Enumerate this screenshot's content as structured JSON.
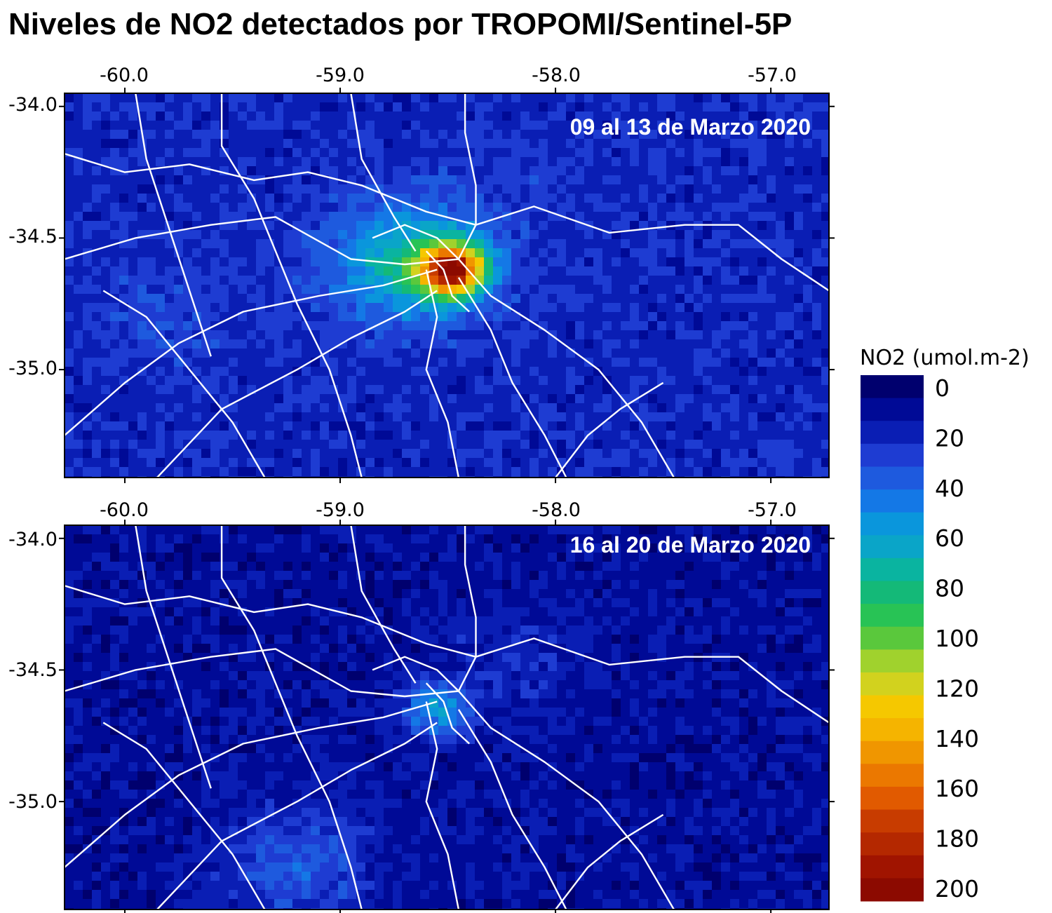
{
  "title": "Niveles de NO2 detectados por TROPOMI/Sentinel-5P",
  "lon_ticks": [
    "-60.0",
    "-59.0",
    "-58.0",
    "-57.0"
  ],
  "lat_ticks": [
    "-34.0",
    "-34.5",
    "-35.0"
  ],
  "lon_range": [
    -60.28,
    -56.73
  ],
  "lat_range": [
    -33.95,
    -35.41
  ],
  "panels": [
    {
      "label": "09 al 13 de Marzo 2020",
      "hotspots": [
        {
          "lon": -58.48,
          "lat": -34.62,
          "no2": 175
        },
        {
          "lon": -58.7,
          "lat": -34.6,
          "no2": 70
        },
        {
          "lon": -59.8,
          "lat": -34.8,
          "no2": 30
        },
        {
          "lon": -58.2,
          "lat": -34.3,
          "no2": 25
        }
      ],
      "background_no2": 20
    },
    {
      "label": "16 al 20 de Marzo 2020",
      "hotspots": [
        {
          "lon": -58.55,
          "lat": -34.65,
          "no2": 55
        },
        {
          "lon": -59.2,
          "lat": -35.25,
          "no2": 35
        },
        {
          "lon": -58.2,
          "lat": -34.45,
          "no2": 20
        }
      ],
      "background_no2": 10
    }
  ],
  "colorbar": {
    "title": "NO2 (umol.m-2)",
    "labels": [
      "0",
      "20",
      "40",
      "60",
      "80",
      "100",
      "120",
      "140",
      "160",
      "180",
      "200"
    ],
    "colors": [
      "#00006e",
      "#000a96",
      "#0a1eb4",
      "#1e3cd2",
      "#1e5ade",
      "#1478e6",
      "#0a96dc",
      "#0aa5c8",
      "#0ab4a0",
      "#14b978",
      "#28c355",
      "#5ac83c",
      "#a0d22d",
      "#d2d21e",
      "#f5c800",
      "#f5b400",
      "#f09600",
      "#eb7800",
      "#e15a00",
      "#c83c00",
      "#b42800",
      "#a01400",
      "#8c0a00"
    ]
  }
}
